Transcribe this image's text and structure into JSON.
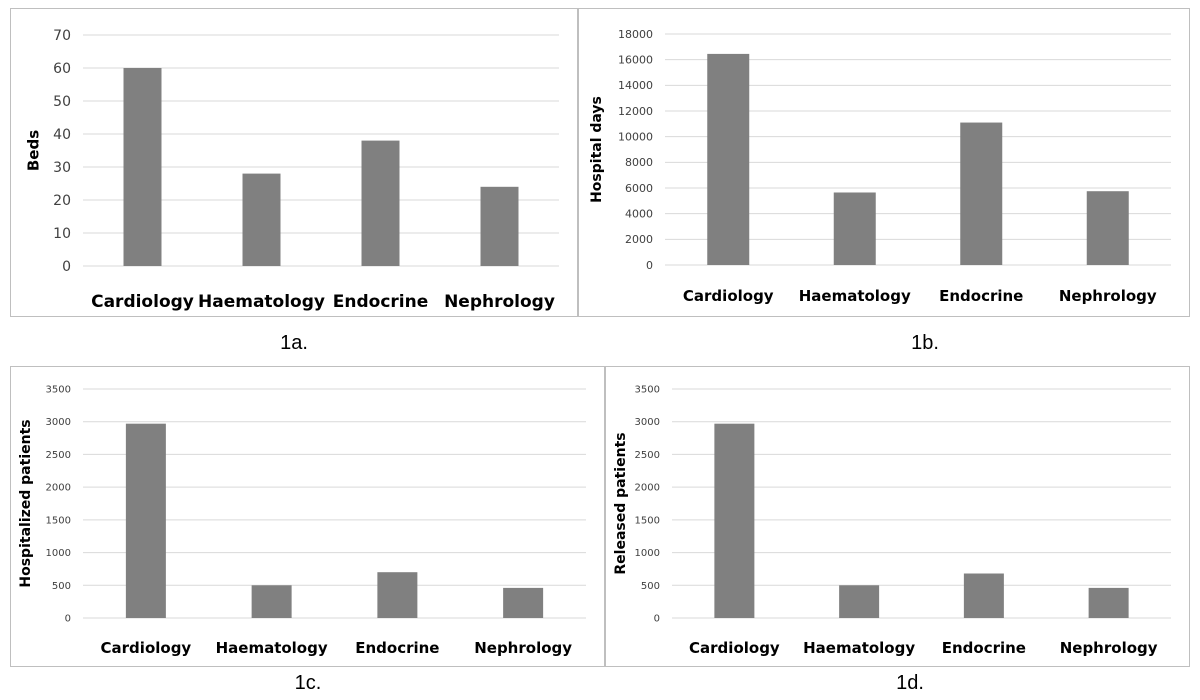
{
  "bar_color": "#808080",
  "grid_color": "#d9d9d9",
  "chart_data": [
    {
      "id": "1a",
      "type": "bar",
      "categories": [
        "Cardiology",
        "Haematology",
        "Endocrine",
        "Nephrology"
      ],
      "values": [
        60,
        28,
        38,
        24
      ],
      "ylabel": "Beds",
      "ylim": [
        0,
        70
      ],
      "yticks": [
        0,
        10,
        20,
        30,
        40,
        50,
        60,
        70
      ],
      "grid": true,
      "caption": "1a."
    },
    {
      "id": "1b",
      "type": "bar",
      "categories": [
        "Cardiology",
        "Haematology",
        "Endocrine",
        "Nephrology"
      ],
      "values": [
        16450,
        5650,
        11100,
        5750
      ],
      "ylabel": "Hospital days",
      "ylim": [
        0,
        18000
      ],
      "yticks": [
        0,
        2000,
        4000,
        6000,
        8000,
        10000,
        12000,
        14000,
        16000,
        18000
      ],
      "grid": true,
      "caption": "1b."
    },
    {
      "id": "1c",
      "type": "bar",
      "categories": [
        "Cardiology",
        "Haematology",
        "Endocrine",
        "Nephrology"
      ],
      "values": [
        2970,
        500,
        700,
        460
      ],
      "ylabel": "Hospitalized patients",
      "ylim": [
        0,
        3500
      ],
      "yticks": [
        0,
        500,
        1000,
        1500,
        2000,
        2500,
        3000,
        3500
      ],
      "grid": true,
      "caption": "1c."
    },
    {
      "id": "1d",
      "type": "bar",
      "categories": [
        "Cardiology",
        "Haematology",
        "Endocrine",
        "Nephrology"
      ],
      "values": [
        2970,
        500,
        680,
        460
      ],
      "ylabel": "Released patients",
      "ylim": [
        0,
        3500
      ],
      "yticks": [
        0,
        500,
        1000,
        1500,
        2000,
        2500,
        3000,
        3500
      ],
      "grid": true,
      "caption": "1d."
    }
  ]
}
